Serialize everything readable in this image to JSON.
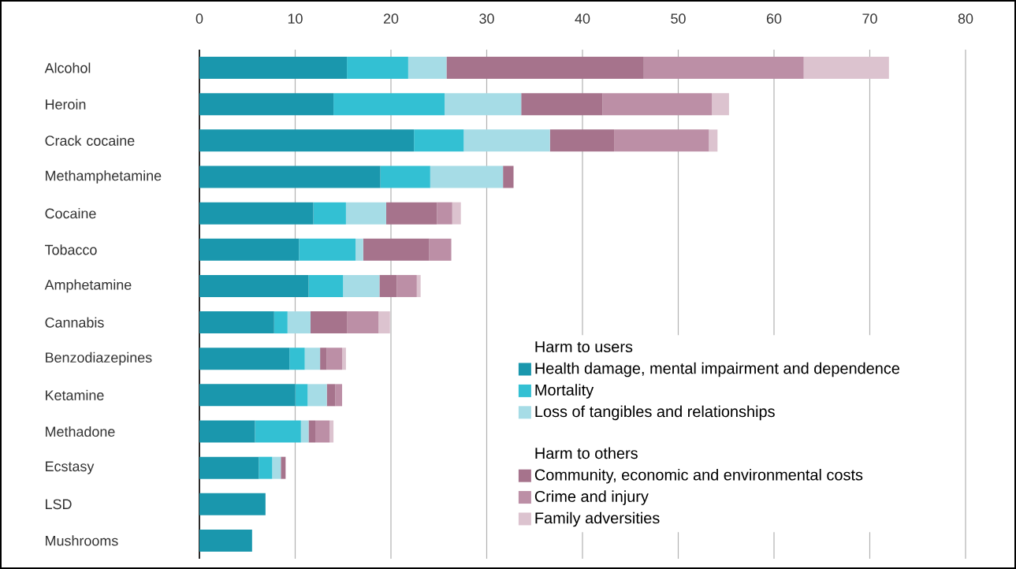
{
  "chart_data": {
    "type": "bar",
    "orientation": "horizontal",
    "stacked": true,
    "categories": [
      "Alcohol",
      "Heroin",
      "Crack cocaine",
      "Methamphetamine",
      "Cocaine",
      "Tobacco",
      "Amphetamine",
      "Cannabis",
      "Benzodiazepines",
      "Ketamine",
      "Methadone",
      "Ecstasy",
      "LSD",
      "Mushrooms"
    ],
    "series": [
      {
        "name": "Health damage, mental impairment and dependence",
        "color": "#1a97ad",
        "values": [
          15.4,
          14.0,
          22.4,
          18.9,
          11.9,
          10.4,
          11.4,
          7.8,
          9.4,
          10.0,
          5.8,
          6.2,
          6.9,
          5.5
        ]
      },
      {
        "name": "Mortality",
        "color": "#33c0d3",
        "values": [
          6.4,
          11.6,
          5.2,
          5.2,
          3.4,
          5.9,
          3.6,
          1.4,
          1.6,
          1.3,
          4.8,
          1.4,
          0,
          0
        ]
      },
      {
        "name": "Loss of tangibles and relationships",
        "color": "#a6dce6",
        "values": [
          4.0,
          8.0,
          9.0,
          7.6,
          4.2,
          0.8,
          3.8,
          2.4,
          1.6,
          2.0,
          0.8,
          0.9,
          0,
          0
        ]
      },
      {
        "name": "Community, economic and environmental costs",
        "color": "#a6738c",
        "values": [
          20.6,
          8.5,
          6.7,
          1.1,
          5.3,
          6.9,
          1.8,
          3.8,
          0.7,
          0.9,
          0.7,
          0.5,
          0,
          0
        ]
      },
      {
        "name": "Crime and injury",
        "color": "#bc8fa6",
        "values": [
          16.7,
          11.4,
          9.9,
          0,
          1.6,
          2.3,
          2.1,
          3.3,
          1.6,
          0.7,
          1.5,
          0,
          0,
          0
        ]
      },
      {
        "name": "Family adversities",
        "color": "#dcc3cf",
        "values": [
          8.9,
          1.8,
          0.9,
          0,
          0.9,
          0,
          0.4,
          1.2,
          0.4,
          0,
          0.4,
          0,
          0,
          0
        ]
      }
    ],
    "annotations": [
      "Harm to users",
      "Harm to others"
    ],
    "xlim": [
      0,
      80
    ],
    "xticks": [
      0,
      10,
      20,
      30,
      40,
      50,
      60,
      70,
      80
    ],
    "grid": "x",
    "legend": "bottom right"
  }
}
